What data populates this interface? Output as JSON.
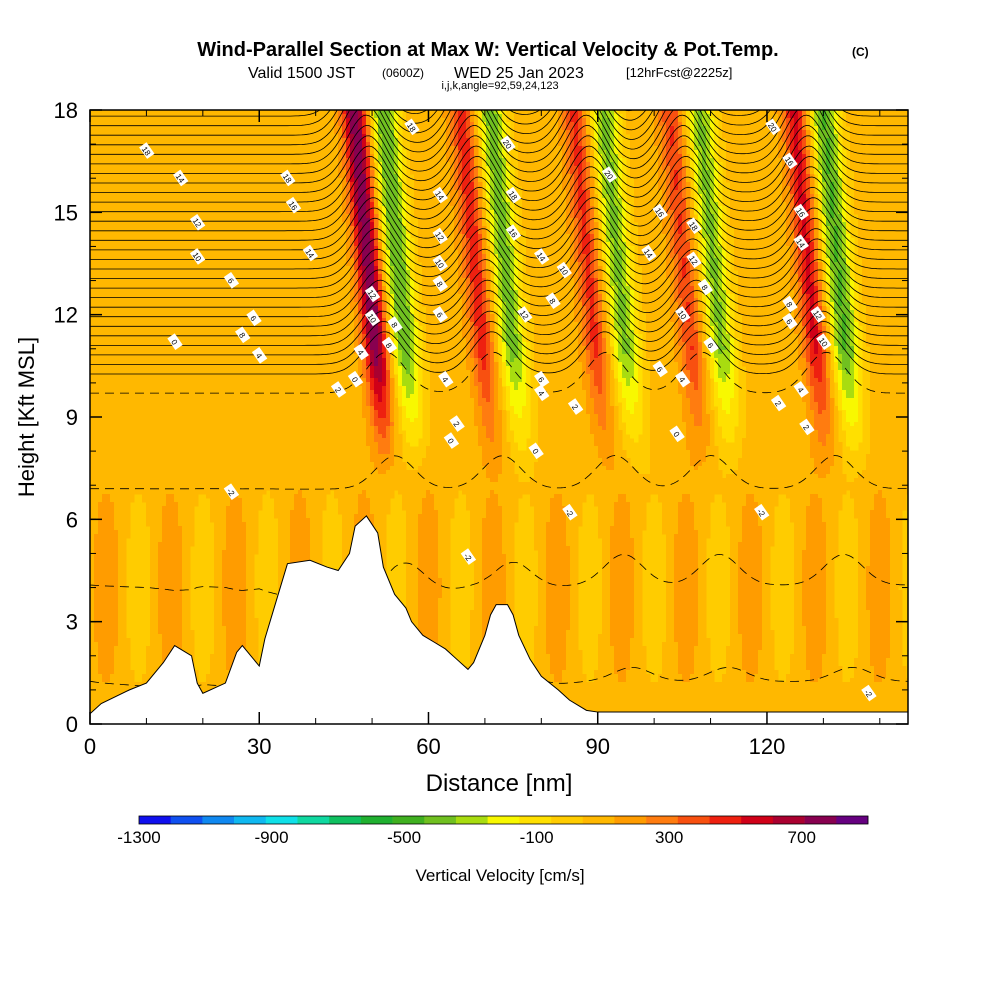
{
  "header": {
    "title": "Wind-Parallel Section at Max W: Vertical Velocity & Pot.Temp.",
    "copyright_mark": "(C)",
    "valid_prefix": "Valid 1500 JST",
    "utc_time": "(0600Z)",
    "valid_date": "WED 25 Jan 2023",
    "forecast_info": "[12hrFcst@2225z]",
    "section_params": "i,j,k,angle=92,59,24,123"
  },
  "chart_data": {
    "type": "heatmap",
    "xlabel": "Distance [nm]",
    "ylabel": "Height [Kft MSL]",
    "xlim": [
      0,
      145
    ],
    "ylim": [
      0,
      18
    ],
    "xticks": [
      0,
      30,
      60,
      90,
      120
    ],
    "yticks": [
      0,
      3,
      6,
      9,
      12,
      15,
      18
    ],
    "x_minor_step": 10,
    "y_minor_step": 1,
    "fill_variable": "Vertical Velocity",
    "colorbar": {
      "label": "Vertical Velocity [cm/s]",
      "min": -1300,
      "max": 900,
      "step": 100,
      "tick_labels": [
        -1300,
        -900,
        -500,
        -100,
        300,
        700
      ],
      "colors": [
        "#1010ee",
        "#1050f0",
        "#1088f0",
        "#10b8f0",
        "#10e0e8",
        "#10d8a0",
        "#10c060",
        "#20b030",
        "#40b020",
        "#70c020",
        "#a8dc10",
        "#f8f800",
        "#ffe000",
        "#ffcc00",
        "#ffb800",
        "#ff9c00",
        "#ff7c10",
        "#f85010",
        "#ee2010",
        "#d00018",
        "#aa0030",
        "#880050",
        "#660080"
      ]
    },
    "wave_crests_nm": [
      54,
      73,
      93,
      110,
      132
    ],
    "waves": [
      {
        "x_nm": 54,
        "updraft_max": 750,
        "downdraft_min": -550
      },
      {
        "x_nm": 73,
        "updraft_max": 420,
        "downdraft_min": -500
      },
      {
        "x_nm": 93,
        "updraft_max": 380,
        "downdraft_min": -480
      },
      {
        "x_nm": 110,
        "updraft_max": 360,
        "downdraft_min": -470
      },
      {
        "x_nm": 132,
        "updraft_max": 480,
        "downdraft_min": -560
      }
    ],
    "terrain": {
      "x": [
        0,
        2,
        7,
        10,
        13,
        15,
        18,
        19,
        20,
        24,
        26,
        27,
        30,
        31,
        33,
        35,
        39,
        42,
        44,
        46,
        47,
        49,
        51,
        52,
        54,
        56,
        57,
        59,
        61,
        63,
        65,
        67,
        68,
        70,
        71,
        72,
        74,
        75,
        76,
        78,
        80,
        83,
        85,
        88,
        90,
        91,
        93,
        95,
        100,
        110,
        120,
        130,
        140,
        145
      ],
      "y": [
        0.3,
        0.6,
        1.0,
        1.2,
        1.8,
        2.3,
        2.0,
        1.2,
        0.9,
        1.2,
        2.1,
        2.3,
        1.7,
        2.5,
        3.6,
        4.7,
        4.8,
        4.6,
        4.5,
        5.0,
        5.8,
        6.1,
        5.6,
        4.6,
        3.8,
        3.4,
        3.0,
        2.6,
        2.4,
        2.2,
        1.9,
        1.6,
        1.8,
        2.6,
        3.2,
        3.5,
        3.5,
        3.2,
        2.6,
        1.9,
        1.4,
        1.0,
        0.7,
        0.4,
        0.35,
        0.35,
        0.35,
        0.35,
        0.35,
        0.35,
        0.35,
        0.35,
        0.35,
        0.35
      ]
    },
    "isentropes": {
      "name": "Potential Temperature",
      "style_below_zero": "dashed",
      "style_above_zero": "solid",
      "labels": [
        {
          "text": "18",
          "x": 10,
          "y": 16.8
        },
        {
          "text": "14",
          "x": 16,
          "y": 16.0
        },
        {
          "text": "12",
          "x": 19,
          "y": 14.7
        },
        {
          "text": "10",
          "x": 19,
          "y": 13.7
        },
        {
          "text": "6",
          "x": 25,
          "y": 13.0
        },
        {
          "text": "0",
          "x": 15,
          "y": 11.2
        },
        {
          "text": "6",
          "x": 29,
          "y": 11.9
        },
        {
          "text": "8",
          "x": 27,
          "y": 11.4
        },
        {
          "text": "4",
          "x": 30,
          "y": 10.8
        },
        {
          "text": "18",
          "x": 35,
          "y": 16.0
        },
        {
          "text": "16",
          "x": 36,
          "y": 15.2
        },
        {
          "text": "14",
          "x": 39,
          "y": 13.8
        },
        {
          "text": "12",
          "x": 50,
          "y": 12.6
        },
        {
          "text": "10",
          "x": 50,
          "y": 11.9
        },
        {
          "text": "8",
          "x": 53,
          "y": 11.1
        },
        {
          "text": "8",
          "x": 54,
          "y": 11.7
        },
        {
          "text": "4",
          "x": 48,
          "y": 10.9
        },
        {
          "text": "0",
          "x": 47,
          "y": 10.1
        },
        {
          "text": "2",
          "x": 44,
          "y": 9.8
        },
        {
          "text": "18",
          "x": 57,
          "y": 17.5
        },
        {
          "text": "14",
          "x": 62,
          "y": 15.5
        },
        {
          "text": "12",
          "x": 62,
          "y": 14.3
        },
        {
          "text": "10",
          "x": 62,
          "y": 13.5
        },
        {
          "text": "8",
          "x": 62,
          "y": 12.9
        },
        {
          "text": "6",
          "x": 62,
          "y": 12.0
        },
        {
          "text": "4",
          "x": 63,
          "y": 10.1
        },
        {
          "text": "2",
          "x": 65,
          "y": 8.8
        },
        {
          "text": "0",
          "x": 64,
          "y": 8.3
        },
        {
          "text": "20",
          "x": 74,
          "y": 17.0
        },
        {
          "text": "18",
          "x": 75,
          "y": 15.5
        },
        {
          "text": "16",
          "x": 75,
          "y": 14.4
        },
        {
          "text": "14",
          "x": 80,
          "y": 13.7
        },
        {
          "text": "10",
          "x": 84,
          "y": 13.3
        },
        {
          "text": "8",
          "x": 82,
          "y": 12.4
        },
        {
          "text": "12",
          "x": 77,
          "y": 12.0
        },
        {
          "text": "6",
          "x": 80,
          "y": 10.1
        },
        {
          "text": "4",
          "x": 80,
          "y": 9.7
        },
        {
          "text": "2",
          "x": 86,
          "y": 9.3
        },
        {
          "text": "0",
          "x": 79,
          "y": 8.0
        },
        {
          "text": "20",
          "x": 92,
          "y": 16.1
        },
        {
          "text": "16",
          "x": 101,
          "y": 15.0
        },
        {
          "text": "14",
          "x": 99,
          "y": 13.8
        },
        {
          "text": "18",
          "x": 107,
          "y": 14.6
        },
        {
          "text": "12",
          "x": 107,
          "y": 13.6
        },
        {
          "text": "8",
          "x": 109,
          "y": 12.8
        },
        {
          "text": "10",
          "x": 105,
          "y": 12.0
        },
        {
          "text": "6",
          "x": 110,
          "y": 11.1
        },
        {
          "text": "6",
          "x": 101,
          "y": 10.4
        },
        {
          "text": "4",
          "x": 105,
          "y": 10.1
        },
        {
          "text": "0",
          "x": 104,
          "y": 8.5
        },
        {
          "text": "20",
          "x": 121,
          "y": 17.5
        },
        {
          "text": "16",
          "x": 124,
          "y": 16.5
        },
        {
          "text": "16",
          "x": 126,
          "y": 15.0
        },
        {
          "text": "14",
          "x": 126,
          "y": 14.1
        },
        {
          "text": "8",
          "x": 124,
          "y": 12.3
        },
        {
          "text": "6",
          "x": 124,
          "y": 11.8
        },
        {
          "text": "12",
          "x": 129,
          "y": 12.0
        },
        {
          "text": "10",
          "x": 130,
          "y": 11.2
        },
        {
          "text": "4",
          "x": 126,
          "y": 9.8
        },
        {
          "text": "2",
          "x": 122,
          "y": 9.4
        },
        {
          "text": "2",
          "x": 127,
          "y": 8.7
        },
        {
          "text": "-2",
          "x": 25,
          "y": 6.8
        },
        {
          "text": "-2",
          "x": 85,
          "y": 6.2
        },
        {
          "text": "-2",
          "x": 119,
          "y": 6.2
        },
        {
          "text": "-2",
          "x": 67,
          "y": 4.9
        },
        {
          "text": "-2",
          "x": 138,
          "y": 0.9
        }
      ]
    }
  }
}
